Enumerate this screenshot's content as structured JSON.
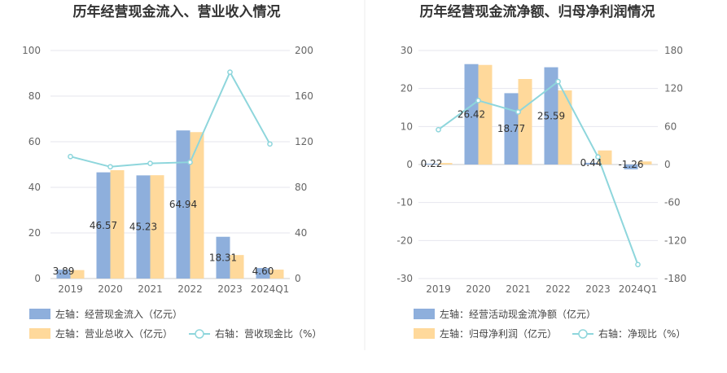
{
  "charts": [
    {
      "title": "历年经营现金流入、营业收入情况",
      "legend": {
        "bar1": "左轴：经营现金流入（亿元）",
        "bar2": "左轴：营业总收入（亿元）",
        "line": "右轴：营收现金比（%）"
      }
    },
    {
      "title": "历年经营现金流净额、归母净利润情况",
      "legend": {
        "bar1": "左轴：经营活动现金流净额（亿元）",
        "bar2": "左轴：归母净利润（亿元）",
        "line": "右轴：净现比（%）"
      }
    }
  ],
  "colors": {
    "bar1": "#8eafdc",
    "bar2": "#ffd99b",
    "line": "#8ed6dc",
    "grid": "#e6e6ee",
    "divider": "#eeeeee"
  },
  "chart_data": [
    {
      "type": "bar",
      "title": "历年经营现金流入、营业收入情况",
      "categories": [
        "2019",
        "2020",
        "2021",
        "2022",
        "2023",
        "2024Q1"
      ],
      "left_axis": {
        "min": 0,
        "max": 100,
        "ticks": [
          0,
          20,
          40,
          60,
          80,
          100
        ]
      },
      "right_axis": {
        "min": 0,
        "max": 200,
        "ticks": [
          0,
          40,
          80,
          120,
          160,
          200
        ]
      },
      "series": [
        {
          "name": "左轴：经营现金流入（亿元）",
          "kind": "bar",
          "axis": "left",
          "values": [
            3.89,
            46.57,
            45.23,
            64.94,
            18.31,
            4.6
          ],
          "labels": [
            "3.89",
            "46.57",
            "45.23",
            "64.94",
            "18.31",
            "4.60"
          ]
        },
        {
          "name": "左轴：营业总收入（亿元）",
          "kind": "bar",
          "axis": "left",
          "values": [
            3.7,
            47.5,
            45.3,
            64.2,
            10.3,
            3.9
          ]
        },
        {
          "name": "右轴：营收现金比（%）",
          "kind": "line",
          "axis": "right",
          "values": [
            107,
            98,
            101,
            102,
            181,
            118
          ]
        }
      ]
    },
    {
      "type": "bar",
      "title": "历年经营现金流净额、归母净利润情况",
      "categories": [
        "2019",
        "2020",
        "2021",
        "2022",
        "2023",
        "2024Q1"
      ],
      "left_axis": {
        "min": -30,
        "max": 30,
        "ticks": [
          -30,
          -20,
          -10,
          0,
          10,
          20,
          30
        ]
      },
      "right_axis": {
        "min": -180,
        "max": 180,
        "ticks": [
          -180,
          -120,
          -60,
          0,
          60,
          120,
          180
        ]
      },
      "series": [
        {
          "name": "左轴：经营活动现金流净额（亿元）",
          "kind": "bar",
          "axis": "left",
          "values": [
            0.22,
            26.42,
            18.77,
            25.59,
            0.44,
            -1.26
          ],
          "labels": [
            "0.22",
            "26.42",
            "18.77",
            "25.59",
            "0.44",
            "-1.26"
          ]
        },
        {
          "name": "左轴：归母净利润（亿元）",
          "kind": "bar",
          "axis": "left",
          "values": [
            0.4,
            26.2,
            22.5,
            19.5,
            3.7,
            0.8
          ]
        },
        {
          "name": "右轴：净现比（%）",
          "kind": "line",
          "axis": "right",
          "values": [
            55,
            101,
            83,
            131,
            12,
            -158
          ]
        }
      ]
    }
  ]
}
